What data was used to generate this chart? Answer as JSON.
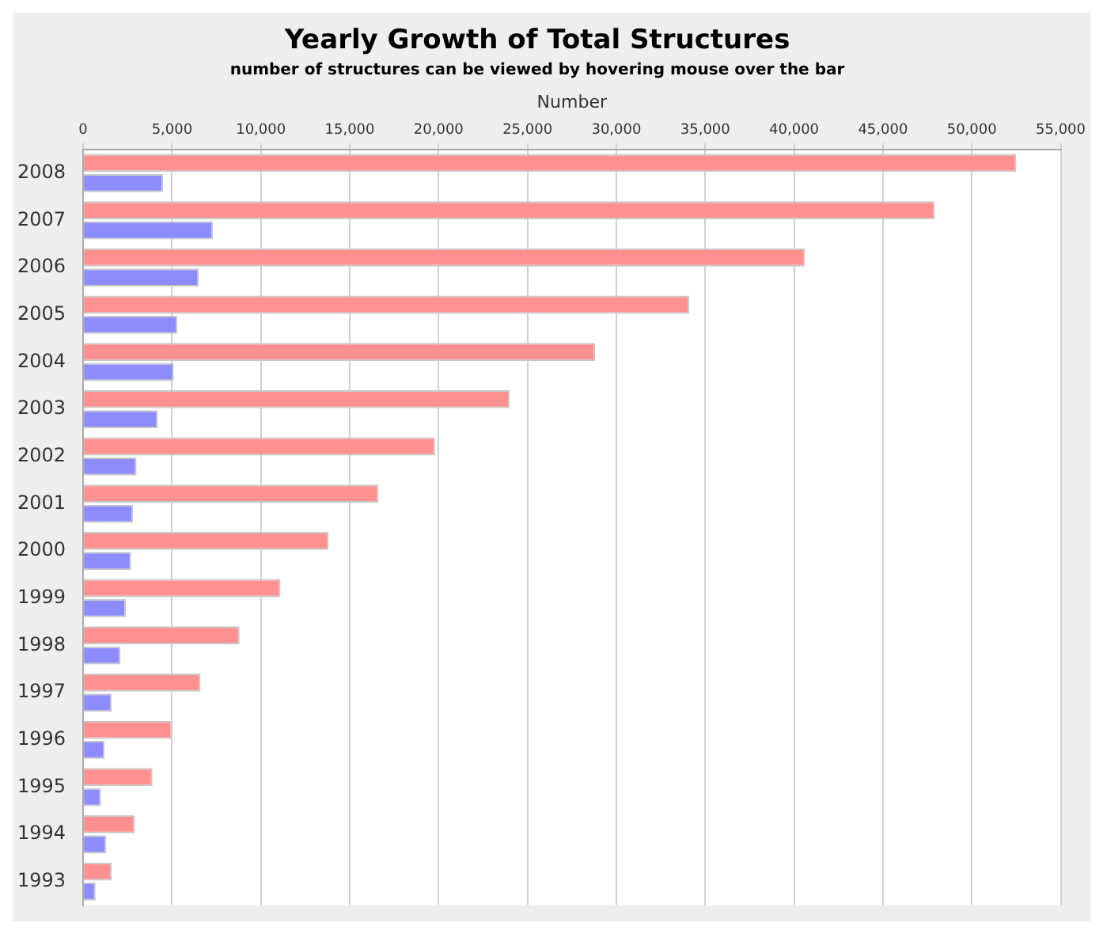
{
  "chart_data": {
    "type": "bar",
    "orientation": "horizontal",
    "title": "Yearly Growth of Total Structures",
    "subtitle": "number of structures can be viewed by hovering mouse over the bar",
    "xlabel": "Number",
    "categories": [
      "2008",
      "2007",
      "2006",
      "2005",
      "2004",
      "2003",
      "2002",
      "2001",
      "2000",
      "1999",
      "1998",
      "1997",
      "1996",
      "1995",
      "1994",
      "1993"
    ],
    "series": [
      {
        "color": "#ff9090",
        "values": [
          52500,
          47900,
          40600,
          34100,
          28800,
          24000,
          19800,
          16600,
          13800,
          11100,
          8800,
          6600,
          5000,
          3900,
          2900,
          1600
        ]
      },
      {
        "color": "#8c8cff",
        "values": [
          4500,
          7300,
          6500,
          5300,
          5100,
          4200,
          3000,
          2800,
          2700,
          2400,
          2100,
          1600,
          1200,
          1000,
          1300,
          700
        ]
      }
    ],
    "xlim": [
      0,
      55000
    ],
    "xticks": [
      0,
      {
        "value": 5000,
        "label": "5,000"
      },
      {
        "value": 10000,
        "label": "10,000"
      },
      {
        "value": 15000,
        "label": "15,000"
      },
      {
        "value": 20000,
        "label": "20,000"
      },
      {
        "value": 25000,
        "label": "25,000"
      },
      {
        "value": 30000,
        "label": "30,000"
      },
      {
        "value": 35000,
        "label": "35,000"
      },
      {
        "value": 40000,
        "label": "40,000"
      },
      {
        "value": 45000,
        "label": "45,000"
      },
      {
        "value": 50000,
        "label": "50,000"
      },
      {
        "value": 55000,
        "label": "55,000"
      }
    ],
    "grid": "x",
    "legend": false
  }
}
